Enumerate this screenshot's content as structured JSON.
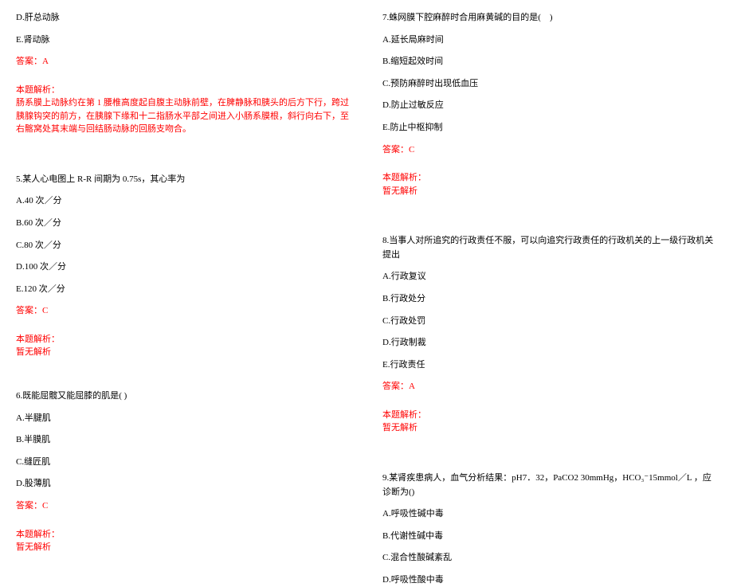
{
  "colors": {
    "text": "#000000",
    "accent": "#ff0000",
    "background": "#ffffff"
  },
  "typography": {
    "font_family": "SimSun",
    "font_size": 11,
    "line_height": 1.6
  },
  "left": {
    "q4_opts": {
      "d": "D.肝总动脉",
      "e": "E.肾动脉"
    },
    "q4_answer": "答案：A",
    "q4_explain_title": "本题解析：",
    "q4_explain_body": "肠系膜上动脉约在第 1 腰椎高度起自腹主动脉前壁，在脾静脉和胰头的后方下行，跨过胰腺钩突的前方，在胰腺下缘和十二指肠水平部之间进入小肠系膜根，斜行向右下，至右髂窝处其末端与回结肠动脉的回肠支吻合。",
    "q5": {
      "stem": "5.某人心电图上 R-R 间期为 0.75s，其心率为",
      "a": "A.40 次／分",
      "b": "B.60 次／分",
      "c": "C.80 次／分",
      "d": "D.100 次／分",
      "e": "E.120 次／分",
      "answer": "答案：C",
      "explain_title": "本题解析：",
      "explain_body": "暂无解析"
    },
    "q6": {
      "stem": "6.既能屈髋又能屈膝的肌是( )",
      "a": "A.半腱肌",
      "b": "B.半膜肌",
      "c": "C.缝匠肌",
      "d": "D.股薄肌",
      "answer": "答案：C",
      "explain_title": "本题解析：",
      "explain_body": "暂无解析"
    }
  },
  "right": {
    "q7": {
      "stem": "7.蛛网膜下腔麻醉时合用麻黄碱的目的是(　)",
      "a": "A.延长局麻时间",
      "b": "B.缩短起效时间",
      "c": "C.预防麻醉时出现低血压",
      "d": "D.防止过敏反应",
      "e": "E.防止中枢抑制",
      "answer": "答案：C",
      "explain_title": "本题解析：",
      "explain_body": "暂无解析"
    },
    "q8": {
      "stem": "8.当事人对所追究的行政责任不服，可以向追究行政责任的行政机关的上一级行政机关提出",
      "a": "A.行政复议",
      "b": "B.行政处分",
      "c": "C.行政处罚",
      "d": "D.行政制裁",
      "e": "E.行政责任",
      "answer": "答案：A",
      "explain_title": "本题解析：",
      "explain_body": "暂无解析"
    },
    "q9": {
      "stem_pre": "9.某肾疾患病人，血气分析结果：pH7．32，PaCO2 30mmHg，",
      "stem_hco3": "HCO₃⁻",
      "stem_post": "15mmol／L ，应诊断为()",
      "a": "A.呼吸性碱中毒",
      "b": "B.代谢性碱中毒",
      "c": "C.混合性酸碱紊乱",
      "d": "D.呼吸性酸中毒"
    }
  }
}
